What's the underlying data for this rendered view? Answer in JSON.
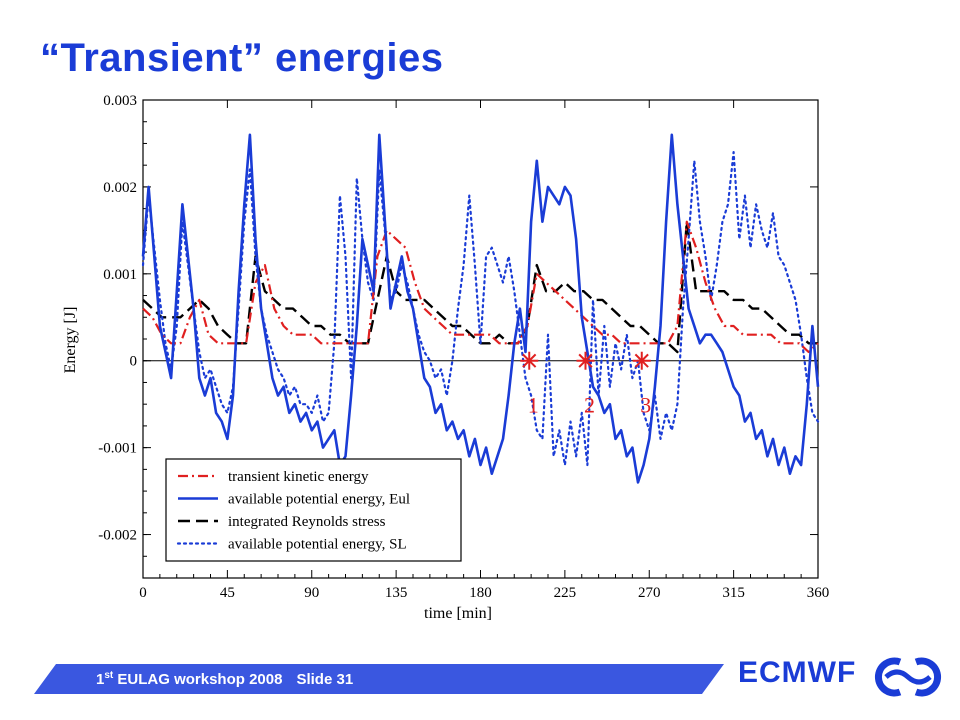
{
  "slide": {
    "title": "“Transient” energies",
    "footer_ordinal": "1",
    "footer_superscript": "st",
    "footer_text": " EULAG workshop 2008",
    "footer_slide": "Slide 31",
    "brand": "ECMWF",
    "brand_logo_icon": "ecmwf-logo-icon"
  },
  "chart_data": {
    "type": "line",
    "xlabel": "time [min]",
    "ylabel": "Energy [J]",
    "xlim": [
      0,
      360
    ],
    "ylim": [
      -0.0025,
      0.003
    ],
    "xticks": [
      "0",
      "45",
      "90",
      "135",
      "180",
      "225",
      "270",
      "315",
      "360"
    ],
    "yticks": [
      "0.003",
      "0.002",
      "0.001",
      "0",
      "-0.001",
      "-0.002"
    ],
    "legend_position": "bottom-left",
    "series": [
      {
        "name": "transient kinetic energy",
        "color": "#e02020",
        "dash": "dashdot",
        "x": [
          0,
          5,
          10,
          15,
          20,
          25,
          30,
          35,
          40,
          45,
          50,
          55,
          60,
          65,
          70,
          75,
          80,
          85,
          90,
          95,
          100,
          105,
          110,
          115,
          120,
          125,
          130,
          135,
          140,
          145,
          150,
          155,
          160,
          165,
          170,
          175,
          180,
          185,
          190,
          195,
          200,
          205,
          210,
          215,
          220,
          225,
          230,
          235,
          240,
          245,
          250,
          255,
          260,
          265,
          270,
          275,
          280,
          285,
          290,
          295,
          300,
          305,
          310,
          315,
          320,
          325,
          330,
          335,
          340,
          345,
          350,
          355,
          360
        ],
        "y": [
          0.0006,
          0.0005,
          0.0003,
          0.0002,
          0.0002,
          0.0005,
          0.0007,
          0.0003,
          0.0002,
          0.0002,
          0.0002,
          0.0002,
          0.0009,
          0.0011,
          0.0006,
          0.0004,
          0.0003,
          0.0003,
          0.0003,
          0.0002,
          0.0002,
          0.0002,
          0.0002,
          0.0002,
          0.0002,
          0.0012,
          0.0015,
          0.0014,
          0.0013,
          0.0009,
          0.0006,
          0.0005,
          0.0004,
          0.0003,
          0.0003,
          0.0003,
          0.0003,
          0.0003,
          0.0002,
          0.0002,
          0.0002,
          0.0004,
          0.001,
          0.0009,
          0.0008,
          0.0007,
          0.0006,
          0.0005,
          0.0004,
          0.0003,
          0.0003,
          0.0002,
          0.0002,
          0.0002,
          0.0002,
          0.0002,
          0.0002,
          0.0004,
          0.0016,
          0.0013,
          0.0009,
          0.0006,
          0.0004,
          0.0004,
          0.0003,
          0.0003,
          0.0003,
          0.0003,
          0.0002,
          0.0002,
          0.0002,
          0.0001,
          0.0002
        ]
      },
      {
        "name": "available potential energy, Eul",
        "color": "#1a3cd6",
        "dash": "solid",
        "x": [
          0,
          3,
          6,
          9,
          12,
          15,
          18,
          21,
          24,
          27,
          30,
          33,
          36,
          39,
          42,
          45,
          48,
          51,
          54,
          57,
          60,
          63,
          66,
          69,
          72,
          75,
          78,
          81,
          84,
          87,
          90,
          93,
          96,
          99,
          102,
          105,
          108,
          111,
          114,
          117,
          120,
          123,
          126,
          129,
          132,
          135,
          138,
          141,
          144,
          147,
          150,
          153,
          156,
          159,
          162,
          165,
          168,
          171,
          174,
          177,
          180,
          183,
          186,
          189,
          192,
          195,
          198,
          201,
          204,
          207,
          210,
          213,
          216,
          219,
          222,
          225,
          228,
          231,
          234,
          237,
          240,
          243,
          246,
          249,
          252,
          255,
          258,
          261,
          264,
          267,
          270,
          273,
          276,
          279,
          282,
          285,
          288,
          291,
          294,
          297,
          300,
          303,
          306,
          309,
          312,
          315,
          318,
          321,
          324,
          327,
          330,
          333,
          336,
          339,
          342,
          345,
          348,
          351,
          354,
          357,
          360
        ],
        "y": [
          0.0012,
          0.002,
          0.0012,
          0.0004,
          0.0001,
          -0.0002,
          0.0008,
          0.0018,
          0.0012,
          0.0006,
          -0.0002,
          -0.0004,
          -0.0002,
          -0.0006,
          -0.0007,
          -0.0009,
          -0.0004,
          0.0008,
          0.0018,
          0.0026,
          0.0014,
          0.0006,
          0.0002,
          -0.0002,
          -0.0004,
          -0.0003,
          -0.0006,
          -0.0005,
          -0.0007,
          -0.0006,
          -0.0008,
          -0.0007,
          -0.001,
          -0.0009,
          -0.0008,
          -0.0012,
          -0.0011,
          -0.0004,
          0.0004,
          0.0014,
          0.0011,
          0.0008,
          0.0026,
          0.0016,
          0.0006,
          0.0009,
          0.0012,
          0.0008,
          0.0006,
          0.0002,
          -0.0002,
          -0.0003,
          -0.0006,
          -0.0005,
          -0.0008,
          -0.0007,
          -0.0009,
          -0.0008,
          -0.0011,
          -0.0009,
          -0.0012,
          -0.001,
          -0.0013,
          -0.0011,
          -0.0009,
          -0.0004,
          0.0002,
          0.0006,
          0.0001,
          0.0016,
          0.0023,
          0.0016,
          0.002,
          0.0019,
          0.0018,
          0.002,
          0.0019,
          0.0014,
          0.0005,
          0.0001,
          -0.0003,
          -0.0004,
          -0.0006,
          -0.0005,
          -0.0009,
          -0.0008,
          -0.0011,
          -0.001,
          -0.0014,
          -0.0012,
          -0.0009,
          -0.0003,
          0.0004,
          0.0016,
          0.0026,
          0.0018,
          0.0012,
          0.0006,
          0.0004,
          0.0002,
          0.0003,
          0.0003,
          0.0002,
          0.0001,
          -0.0001,
          -0.0003,
          -0.0004,
          -0.0007,
          -0.0006,
          -0.0009,
          -0.0008,
          -0.0011,
          -0.0009,
          -0.0012,
          -0.001,
          -0.0013,
          -0.0011,
          -0.0012,
          -0.0005,
          0.0004,
          -0.0003
        ]
      },
      {
        "name": "integrated Reynolds stress",
        "color": "#000000",
        "dash": "dashed",
        "x": [
          0,
          5,
          10,
          15,
          20,
          25,
          30,
          35,
          40,
          45,
          50,
          55,
          60,
          65,
          70,
          75,
          80,
          85,
          90,
          95,
          100,
          105,
          110,
          115,
          120,
          125,
          130,
          135,
          140,
          145,
          150,
          155,
          160,
          165,
          170,
          175,
          180,
          185,
          190,
          195,
          200,
          205,
          210,
          215,
          220,
          225,
          230,
          235,
          240,
          245,
          250,
          255,
          260,
          265,
          270,
          275,
          280,
          285,
          290,
          295,
          300,
          305,
          310,
          315,
          320,
          325,
          330,
          335,
          340,
          345,
          350,
          355,
          360
        ],
        "y": [
          0.0007,
          0.0006,
          0.0005,
          0.0005,
          0.0005,
          0.0006,
          0.0007,
          0.0006,
          0.0004,
          0.0003,
          0.0002,
          0.0002,
          0.0012,
          0.0008,
          0.0007,
          0.0006,
          0.0006,
          0.0005,
          0.0004,
          0.0004,
          0.0003,
          0.0003,
          0.0002,
          0.0002,
          0.0002,
          0.0007,
          0.0012,
          0.0008,
          0.0007,
          0.0007,
          0.0007,
          0.0006,
          0.0005,
          0.0004,
          0.0004,
          0.0003,
          0.0002,
          0.0002,
          0.0003,
          0.0002,
          0.0002,
          0.0004,
          0.0011,
          0.0008,
          0.0008,
          0.0009,
          0.0008,
          0.0008,
          0.0007,
          0.0007,
          0.0006,
          0.0005,
          0.0004,
          0.0004,
          0.0003,
          0.0002,
          0.0002,
          0.0001,
          0.0016,
          0.0008,
          0.0008,
          0.0008,
          0.0008,
          0.0007,
          0.0007,
          0.0006,
          0.0006,
          0.0005,
          0.0004,
          0.0003,
          0.0003,
          0.0002,
          0.0002
        ]
      },
      {
        "name": "available potential energy, SL",
        "color": "#1a3cd6",
        "dash": "dotted",
        "x": [
          0,
          3,
          6,
          9,
          12,
          15,
          18,
          21,
          24,
          27,
          30,
          33,
          36,
          39,
          42,
          45,
          48,
          51,
          54,
          57,
          60,
          63,
          66,
          69,
          72,
          75,
          78,
          81,
          84,
          87,
          90,
          93,
          96,
          99,
          102,
          105,
          108,
          111,
          114,
          117,
          120,
          123,
          126,
          129,
          132,
          135,
          138,
          141,
          144,
          147,
          150,
          153,
          156,
          159,
          162,
          165,
          168,
          171,
          174,
          177,
          180,
          183,
          186,
          189,
          192,
          195,
          198,
          201,
          204,
          207,
          210,
          213,
          216,
          219,
          222,
          225,
          228,
          231,
          234,
          237,
          240,
          243,
          246,
          249,
          252,
          255,
          258,
          261,
          264,
          267,
          270,
          273,
          276,
          279,
          282,
          285,
          288,
          291,
          294,
          297,
          300,
          303,
          306,
          309,
          312,
          315,
          318,
          321,
          324,
          327,
          330,
          333,
          336,
          339,
          342,
          345,
          348,
          351,
          354,
          357,
          360
        ],
        "y": [
          0.0011,
          0.0019,
          0.0013,
          0.0007,
          0.0002,
          -0.0001,
          0.0004,
          0.0016,
          0.0011,
          0.0006,
          0.0001,
          -0.0002,
          -0.0001,
          -0.0003,
          -0.0005,
          -0.0006,
          -0.0003,
          0.0006,
          0.0016,
          0.0022,
          0.0012,
          0.0006,
          0.0003,
          0.0001,
          -0.0001,
          -0.0002,
          -0.0004,
          -0.0003,
          -0.0005,
          -0.0005,
          -0.0006,
          -0.0004,
          -0.0007,
          -0.0006,
          0.0002,
          0.0019,
          0.0012,
          -0.0002,
          0.0021,
          0.0014,
          0.0009,
          0.0007,
          0.0022,
          0.0015,
          0.0007,
          0.0008,
          0.0011,
          0.0009,
          0.0006,
          0.0003,
          0.0001,
          0.0,
          -0.0002,
          -0.0001,
          -0.0004,
          0.0,
          0.0006,
          0.0011,
          0.0019,
          0.0011,
          0.0002,
          0.0012,
          0.0013,
          0.0011,
          0.0009,
          0.0012,
          0.0008,
          0.0003,
          -0.0002,
          -0.0004,
          -0.0008,
          -0.0009,
          0.0003,
          -0.0011,
          -0.0008,
          -0.0012,
          -0.0007,
          -0.0011,
          -0.0006,
          -0.0012,
          0.0007,
          -0.0004,
          0.0004,
          -0.0003,
          0.0002,
          -0.0001,
          0.0003,
          -0.0002,
          0.0,
          -0.0006,
          -0.0008,
          -0.0004,
          -0.0009,
          -0.0006,
          -0.0008,
          -0.0005,
          0.0006,
          0.0014,
          0.0023,
          0.0016,
          0.0012,
          0.0007,
          0.0011,
          0.0016,
          0.0018,
          0.0024,
          0.0014,
          0.0019,
          0.0013,
          0.0018,
          0.0015,
          0.0013,
          0.0017,
          0.0012,
          0.0011,
          0.0009,
          0.0007,
          0.0003,
          -0.0002,
          -0.0006,
          -0.0007
        ]
      }
    ],
    "markers": [
      {
        "label": "1",
        "x": 206,
        "y": 0.0
      },
      {
        "label": "2",
        "x": 236,
        "y": 0.0
      },
      {
        "label": "3",
        "x": 266,
        "y": 0.0
      }
    ],
    "marker_color": "#e02020",
    "axis_color": "#000000"
  }
}
